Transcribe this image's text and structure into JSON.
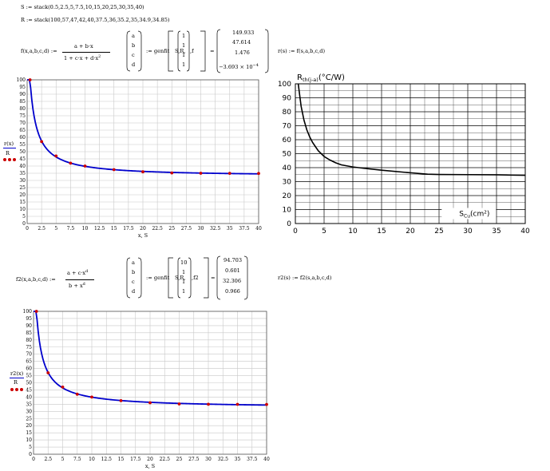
{
  "top": {
    "s_def": "S := stack(0.5,2.5,5,7.5,10,15,20,25,30,35,40)",
    "r_def": "R := stack(100,57,47,42,40,37.5,36,35.2,35,34.9,34.85)",
    "f_lhs": "f(x,a,b,c,d) :=",
    "f_num": "a + b·x",
    "f_den": "1 + c·x + d·x",
    "f_den_exp": "2",
    "params": [
      "a",
      "b",
      "c",
      "d"
    ],
    "genfit": ":= genfit",
    "genfit_args": "S,R,",
    "guess": [
      "1",
      "1",
      "1",
      "1"
    ],
    "fname": ",f",
    "equals": "=",
    "result": [
      "149.933",
      "47.614",
      "1.476",
      "−3.693 × 10"
    ],
    "result_exp": "−4",
    "r_def2": "r(s) := f(s,a,b,c,d)"
  },
  "bottom": {
    "f2_lhs": "f2(x,a,b,c,d) :=",
    "f2_num": "a + c·x",
    "f2_num_exp": "d",
    "f2_den": "b + x",
    "f2_den_exp": "d",
    "params": [
      "a",
      "b",
      "c",
      "d"
    ],
    "genfit": ":= genfit",
    "genfit_args": "S,R,",
    "guess": [
      "10",
      "1",
      "1",
      "1"
    ],
    "fname": ",f2",
    "equals": "=",
    "result": [
      "94.703",
      "0.601",
      "32.306",
      "0.966"
    ],
    "r2_def": "r2(s) := f2(s,a,b,c,d)"
  },
  "chart_data": [
    {
      "type": "scatter",
      "legend": [
        "r(x)",
        "R"
      ],
      "xlabel": "x, S",
      "xlim": [
        0,
        40
      ],
      "ylim": [
        0,
        100
      ],
      "xticks": [
        "0",
        "2.5",
        "5",
        "7.5",
        "10",
        "12.5",
        "15",
        "17.5",
        "20",
        "22.5",
        "25",
        "27.5",
        "30",
        "32.5",
        "35",
        "37.5",
        "40"
      ],
      "yticks": [
        "0",
        "5",
        "10",
        "15",
        "20",
        "25",
        "30",
        "35",
        "40",
        "45",
        "50",
        "55",
        "60",
        "65",
        "70",
        "75",
        "80",
        "85",
        "90",
        "95",
        "100"
      ],
      "points_x": [
        0.5,
        2.5,
        5,
        7.5,
        10,
        15,
        20,
        25,
        30,
        35,
        40
      ],
      "points_y": [
        100,
        57,
        47,
        42,
        40,
        37.5,
        36,
        35.2,
        35,
        34.9,
        34.85
      ],
      "curve": {
        "model": "f",
        "a": 149.933,
        "b": 47.614,
        "c": 1.476,
        "d": -0.0003693
      },
      "line_color": "#0000cc",
      "point_color": "#cc0000"
    },
    {
      "type": "line",
      "ylabel": "R",
      "ylabel_sub": "th(j-a)",
      "ylabel_unit": "(°C/W)",
      "xlabel": "S",
      "xlabel_sub": "Cu",
      "xlabel_unit": "(cm²)",
      "xlim": [
        0,
        40
      ],
      "ylim": [
        0,
        100
      ],
      "xticks": [
        "0",
        "5",
        "10",
        "15",
        "20",
        "25",
        "30",
        "35",
        "40"
      ],
      "yticks": [
        "0",
        "10",
        "20",
        "30",
        "40",
        "50",
        "60",
        "70",
        "80",
        "90",
        "100"
      ],
      "x": [
        0.5,
        1,
        1.5,
        2,
        2.5,
        3,
        3.5,
        4,
        5,
        6,
        7,
        8,
        10,
        12,
        15,
        20,
        23,
        25,
        30,
        35,
        40
      ],
      "y": [
        100,
        84,
        74,
        67,
        62,
        58,
        55,
        52,
        48,
        45.5,
        43.5,
        42,
        40.5,
        39.5,
        38.2,
        36.3,
        35.3,
        35.1,
        35,
        34.9,
        34.5
      ],
      "line_color": "#000000"
    },
    {
      "type": "scatter",
      "legend": [
        "r2(x)",
        "R"
      ],
      "xlabel": "x, S",
      "xlim": [
        0,
        40
      ],
      "ylim": [
        0,
        100
      ],
      "xticks": [
        "0",
        "2.5",
        "5",
        "7.5",
        "10",
        "12.5",
        "15",
        "17.5",
        "20",
        "22.5",
        "25",
        "27.5",
        "30",
        "32.5",
        "35",
        "37.5",
        "40"
      ],
      "yticks": [
        "0",
        "5",
        "10",
        "15",
        "20",
        "25",
        "30",
        "35",
        "40",
        "45",
        "50",
        "55",
        "60",
        "65",
        "70",
        "75",
        "80",
        "85",
        "90",
        "95",
        "100"
      ],
      "points_x": [
        0.5,
        2.5,
        5,
        7.5,
        10,
        15,
        20,
        25,
        30,
        35,
        40
      ],
      "points_y": [
        100,
        57,
        47,
        42,
        40,
        37.5,
        36,
        35.2,
        35,
        34.9,
        34.85
      ],
      "curve": {
        "model": "f2",
        "a": 94.703,
        "b": 0.601,
        "c": 32.306,
        "d": 0.966
      },
      "line_color": "#0000cc",
      "point_color": "#cc0000"
    }
  ]
}
